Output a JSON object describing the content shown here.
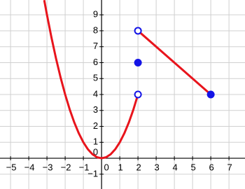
{
  "chart_data": {
    "type": "line",
    "xlim": [
      -5.58,
      7.88
    ],
    "ylim": [
      -1.93,
      9.93
    ],
    "xticks": [
      {
        "value": -5,
        "label": "−5"
      },
      {
        "value": -4,
        "label": "−4"
      },
      {
        "value": -3,
        "label": "−3"
      },
      {
        "value": -2,
        "label": "−2"
      },
      {
        "value": -1,
        "label": "−1"
      },
      0,
      1,
      2,
      3,
      4,
      5,
      6,
      7
    ],
    "yticks": [
      {
        "value": -1,
        "label": "−1"
      },
      0,
      1,
      2,
      3,
      4,
      5,
      6,
      7,
      8,
      9
    ],
    "grid": true,
    "series": [
      {
        "color": "#e8141c",
        "x": [
          -3.15,
          -3,
          -2.75,
          -2.5,
          -2.25,
          -2,
          -1.75,
          -1.5,
          -1.25,
          -1,
          -0.75,
          -0.5,
          -0.25,
          0,
          0.25,
          0.5,
          0.75,
          1,
          1.25,
          1.5,
          1.75,
          2
        ],
        "values": [
          9.9225,
          9,
          7.5625,
          6.25,
          5.0625,
          4,
          3.0625,
          2.25,
          1.5625,
          1,
          0.5625,
          0.25,
          0.0625,
          0,
          0.0625,
          0.25,
          0.5625,
          1,
          1.5625,
          2.25,
          3.0625,
          4
        ]
      },
      {
        "color": "#e8141c",
        "x": [
          2,
          6
        ],
        "values": [
          8,
          4
        ]
      },
      {
        "color": "#1414e6",
        "marker": "open",
        "x": [
          2,
          2
        ],
        "values": [
          8,
          4
        ]
      },
      {
        "color": "#1414e6",
        "marker": "filled",
        "x": [
          2,
          6
        ],
        "values": [
          6,
          4
        ]
      }
    ]
  }
}
